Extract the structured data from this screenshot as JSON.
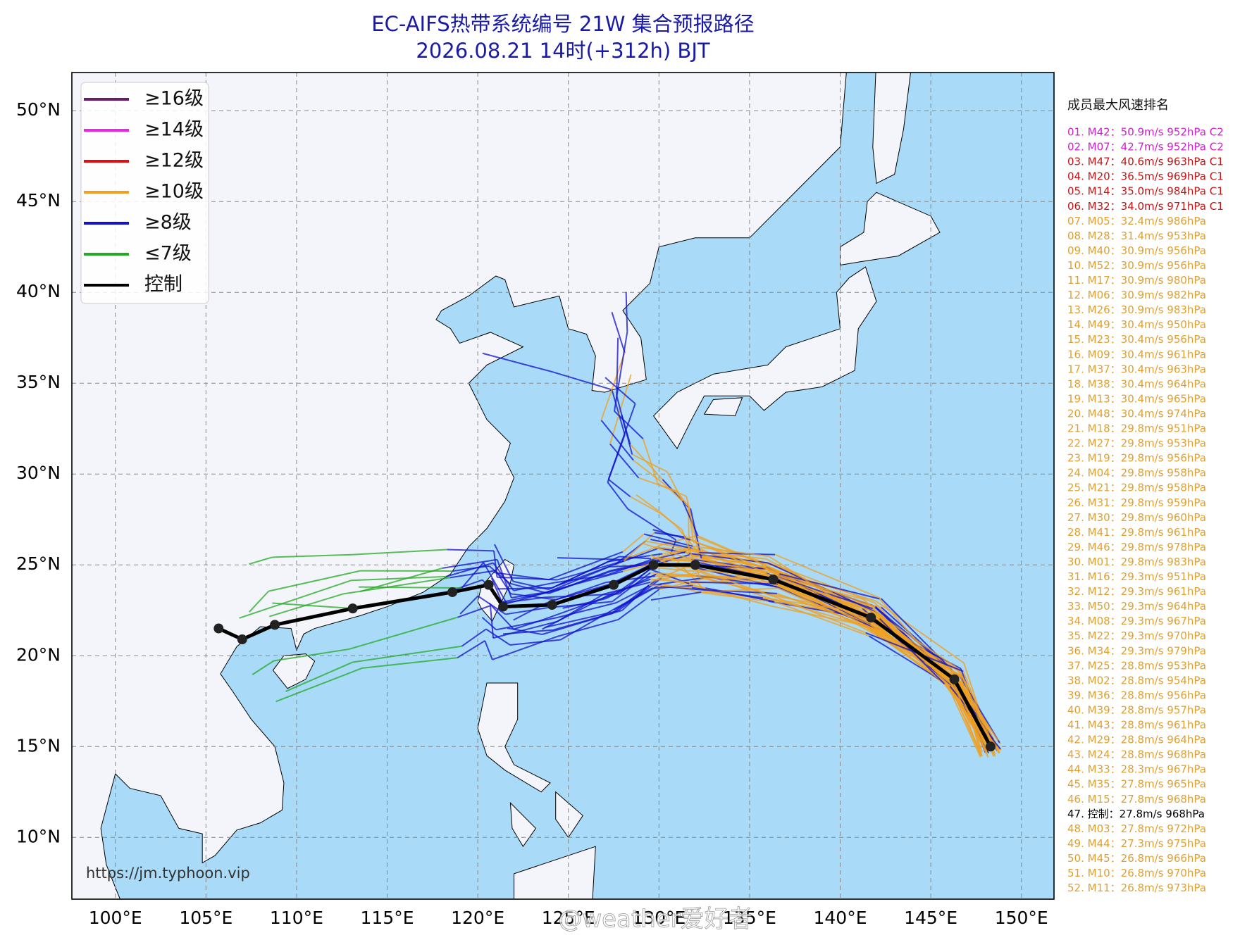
{
  "header": {
    "title": "EC-AIFS热带系统编号 21W 集合预报路径",
    "subtitle": "2026.08.21 14时(+312h) BJT"
  },
  "map": {
    "xlim": [
      97.6,
      151.8
    ],
    "ylim": [
      6.6,
      52.1
    ],
    "xticks": [
      {
        "value": 100,
        "label": "100°E"
      },
      {
        "value": 105,
        "label": "105°E"
      },
      {
        "value": 110,
        "label": "110°E"
      },
      {
        "value": 115,
        "label": "115°E"
      },
      {
        "value": 120,
        "label": "120°E"
      },
      {
        "value": 125,
        "label": "125°E"
      },
      {
        "value": 130,
        "label": "130°E"
      },
      {
        "value": 135,
        "label": "135°E"
      },
      {
        "value": 140,
        "label": "140°E"
      },
      {
        "value": 145,
        "label": "145°E"
      },
      {
        "value": 150,
        "label": "150°E"
      }
    ],
    "yticks": [
      {
        "value": 10,
        "label": "10°N"
      },
      {
        "value": 15,
        "label": "15°N"
      },
      {
        "value": 20,
        "label": "20°N"
      },
      {
        "value": 25,
        "label": "25°N"
      },
      {
        "value": 30,
        "label": "30°N"
      },
      {
        "value": 35,
        "label": "35°N"
      },
      {
        "value": 40,
        "label": "40°N"
      },
      {
        "value": 45,
        "label": "45°N"
      },
      {
        "value": 50,
        "label": "50°N"
      }
    ],
    "grid": true,
    "land_color": "#f3f5fa",
    "ocean_color": "#a9dbf9",
    "legend": [
      {
        "label": "≥16级",
        "color": "#6a1a6a"
      },
      {
        "label": "≥14级",
        "color": "#ee22ee"
      },
      {
        "label": "≥12级",
        "color": "#dd1111"
      },
      {
        "label": "≥10级",
        "color": "#f0a020"
      },
      {
        "label": "≥8级",
        "color": "#1010cc"
      },
      {
        "label": "≤7级",
        "color": "#22aa22"
      },
      {
        "label": "控制",
        "color": "#000000"
      }
    ],
    "control_track": {
      "lon": [
        148.3,
        146.3,
        141.7,
        136.3,
        132.0,
        129.7,
        127.5,
        124.1,
        121.4,
        120.6,
        118.6,
        113.1,
        108.8,
        107.0,
        105.7
      ],
      "lat": [
        15.0,
        18.7,
        22.1,
        24.2,
        25.0,
        25.0,
        23.9,
        22.8,
        22.7,
        23.9,
        23.5,
        22.6,
        21.7,
        20.9,
        21.5
      ]
    },
    "source": "https://jm.typhoon.vip"
  },
  "ranking": {
    "title": "成员最大风速排名",
    "items": [
      {
        "text": "01. M42：50.9m/s 952hPa C2",
        "color": "#d020d0"
      },
      {
        "text": "02. M07：42.7m/s 952hPa C2",
        "color": "#d020d0"
      },
      {
        "text": "03. M47：40.6m/s 963hPa C1",
        "color": "#c81414"
      },
      {
        "text": "04. M20：36.5m/s 969hPa C1",
        "color": "#c81414"
      },
      {
        "text": "05. M14：35.0m/s 984hPa C1",
        "color": "#c81414"
      },
      {
        "text": "06. M32：34.0m/s 971hPa C1",
        "color": "#c81414"
      },
      {
        "text": "07. M05：32.4m/s 986hPa",
        "color": "#e0a030"
      },
      {
        "text": "08. M28：31.4m/s 953hPa",
        "color": "#e0a030"
      },
      {
        "text": "09. M40：30.9m/s 956hPa",
        "color": "#e0a030"
      },
      {
        "text": "10. M52：30.9m/s 956hPa",
        "color": "#e0a030"
      },
      {
        "text": "11. M17：30.9m/s 980hPa",
        "color": "#e0a030"
      },
      {
        "text": "12. M06：30.9m/s 982hPa",
        "color": "#e0a030"
      },
      {
        "text": "13. M26：30.9m/s 983hPa",
        "color": "#e0a030"
      },
      {
        "text": "14. M49：30.4m/s 950hPa",
        "color": "#e0a030"
      },
      {
        "text": "15. M23：30.4m/s 956hPa",
        "color": "#e0a030"
      },
      {
        "text": "16. M09：30.4m/s 961hPa",
        "color": "#e0a030"
      },
      {
        "text": "17. M37：30.4m/s 963hPa",
        "color": "#e0a030"
      },
      {
        "text": "18. M38：30.4m/s 964hPa",
        "color": "#e0a030"
      },
      {
        "text": "19. M13：30.4m/s 965hPa",
        "color": "#e0a030"
      },
      {
        "text": "20. M48：30.4m/s 974hPa",
        "color": "#e0a030"
      },
      {
        "text": "21. M18：29.8m/s 951hPa",
        "color": "#e0a030"
      },
      {
        "text": "22. M27：29.8m/s 953hPa",
        "color": "#e0a030"
      },
      {
        "text": "23. M19：29.8m/s 956hPa",
        "color": "#e0a030"
      },
      {
        "text": "24. M04：29.8m/s 958hPa",
        "color": "#e0a030"
      },
      {
        "text": "25. M21：29.8m/s 958hPa",
        "color": "#e0a030"
      },
      {
        "text": "26. M31：29.8m/s 959hPa",
        "color": "#e0a030"
      },
      {
        "text": "27. M30：29.8m/s 960hPa",
        "color": "#e0a030"
      },
      {
        "text": "28. M41：29.8m/s 961hPa",
        "color": "#e0a030"
      },
      {
        "text": "29. M46：29.8m/s 978hPa",
        "color": "#e0a030"
      },
      {
        "text": "30. M01：29.8m/s 983hPa",
        "color": "#e0a030"
      },
      {
        "text": "31. M16：29.3m/s 951hPa",
        "color": "#e0a030"
      },
      {
        "text": "32. M12：29.3m/s 961hPa",
        "color": "#e0a030"
      },
      {
        "text": "33. M50：29.3m/s 964hPa",
        "color": "#e0a030"
      },
      {
        "text": "34. M08：29.3m/s 967hPa",
        "color": "#e0a030"
      },
      {
        "text": "35. M22：29.3m/s 970hPa",
        "color": "#e0a030"
      },
      {
        "text": "36. M34：29.3m/s 979hPa",
        "color": "#e0a030"
      },
      {
        "text": "37. M25：28.8m/s 953hPa",
        "color": "#e0a030"
      },
      {
        "text": "38. M02：28.8m/s 954hPa",
        "color": "#e0a030"
      },
      {
        "text": "39. M36：28.8m/s 956hPa",
        "color": "#e0a030"
      },
      {
        "text": "40. M39：28.8m/s 957hPa",
        "color": "#e0a030"
      },
      {
        "text": "41. M43：28.8m/s 961hPa",
        "color": "#e0a030"
      },
      {
        "text": "42. M29：28.8m/s 964hPa",
        "color": "#e0a030"
      },
      {
        "text": "43. M24：28.8m/s 968hPa",
        "color": "#e0a030"
      },
      {
        "text": "44. M33：28.3m/s 967hPa",
        "color": "#e0a030"
      },
      {
        "text": "45. M35：27.8m/s 965hPa",
        "color": "#e0a030"
      },
      {
        "text": "46. M15：27.8m/s 968hPa",
        "color": "#e0a030"
      },
      {
        "text": "47. 控制：27.8m/s 968hPa",
        "color": "#000000"
      },
      {
        "text": "48. M03：27.8m/s 972hPa",
        "color": "#e0a030"
      },
      {
        "text": "49. M44：27.3m/s 975hPa",
        "color": "#e0a030"
      },
      {
        "text": "50. M45：26.8m/s 966hPa",
        "color": "#e0a030"
      },
      {
        "text": "51. M10：26.8m/s 970hPa",
        "color": "#e0a030"
      },
      {
        "text": "52. M11：26.8m/s 973hPa",
        "color": "#e0a030"
      }
    ]
  },
  "watermark": "@weather爱好者"
}
